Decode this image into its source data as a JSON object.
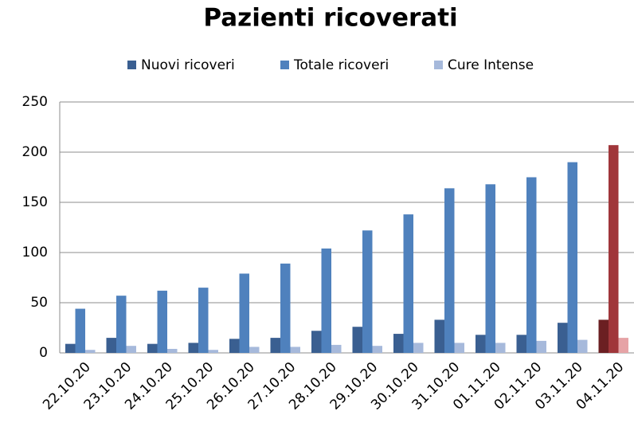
{
  "chart_data": {
    "type": "bar",
    "title": "Pazienti ricoverati",
    "categories": [
      "22.10.20",
      "23.10.20",
      "24.10.20",
      "25.10.20",
      "26.10.20",
      "27.10.20",
      "28.10.20",
      "29.10.20",
      "30.10.20",
      "31.10.20",
      "01.11.20",
      "02.11.20",
      "03.11.20",
      "04.11.20"
    ],
    "series": [
      {
        "name": "Nuovi ricoveri",
        "color": "#3a5f91",
        "highlight_color": "#6b1f22",
        "values": [
          9,
          15,
          9,
          10,
          14,
          15,
          22,
          26,
          19,
          33,
          18,
          18,
          30,
          33
        ]
      },
      {
        "name": "Totale ricoveri",
        "color": "#4f81bd",
        "highlight_color": "#a0363a",
        "values": [
          44,
          57,
          62,
          65,
          79,
          89,
          104,
          122,
          138,
          164,
          168,
          175,
          190,
          207
        ]
      },
      {
        "name": "Cure Intense",
        "color": "#a6b9db",
        "highlight_color": "#e6a3a6",
        "values": [
          3,
          7,
          4,
          3,
          6,
          6,
          8,
          7,
          10,
          10,
          10,
          12,
          13,
          15
        ]
      }
    ],
    "highlight_index": 13,
    "ylim": [
      0,
      250
    ],
    "yticks": [
      0,
      50,
      100,
      150,
      200,
      250
    ],
    "grid": true,
    "legend": "top"
  }
}
